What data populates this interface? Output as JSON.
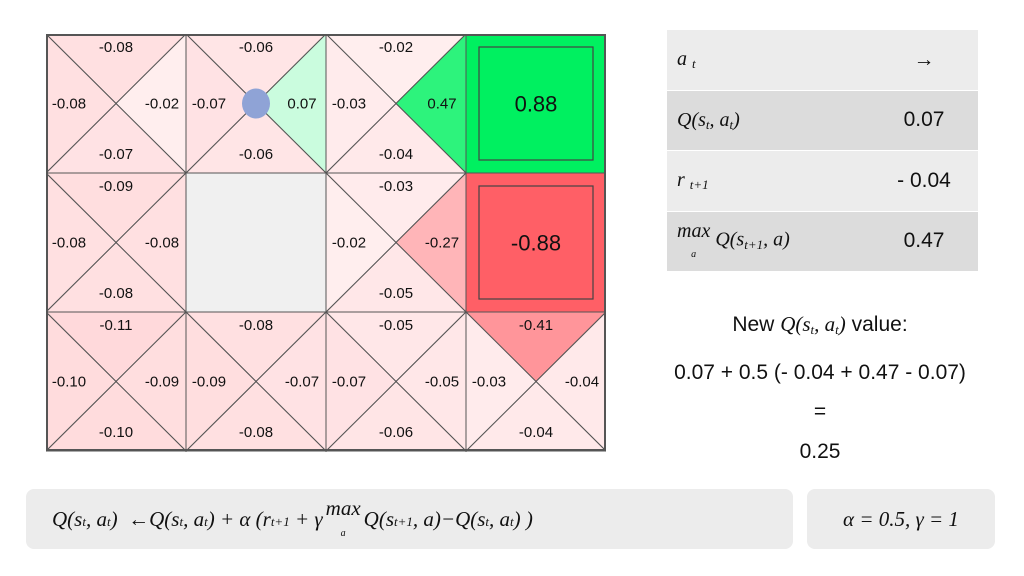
{
  "grid": {
    "cells": [
      {
        "type": "q",
        "values": {
          "up": "-0.08",
          "left": "-0.08",
          "right": "-0.02",
          "down": "-0.07"
        }
      },
      {
        "type": "q",
        "values": {
          "up": "-0.06",
          "left": "-0.07",
          "right": "0.07",
          "down": "-0.06"
        }
      },
      {
        "type": "q",
        "values": {
          "up": "-0.02",
          "left": "-0.03",
          "right": "0.47",
          "down": "-0.04"
        }
      },
      {
        "type": "terminal",
        "value": "0.88"
      },
      {
        "type": "q",
        "values": {
          "up": "-0.09",
          "left": "-0.08",
          "right": "-0.08",
          "down": "-0.08"
        }
      },
      {
        "type": "wall"
      },
      {
        "type": "q",
        "values": {
          "up": "-0.03",
          "left": "-0.02",
          "right": "-0.27",
          "down": "-0.05"
        }
      },
      {
        "type": "terminal",
        "value": "-0.88"
      },
      {
        "type": "q",
        "values": {
          "up": "-0.11",
          "left": "-0.10",
          "right": "-0.09",
          "down": "-0.10"
        }
      },
      {
        "type": "q",
        "values": {
          "up": "-0.08",
          "left": "-0.09",
          "right": "-0.07",
          "down": "-0.08"
        }
      },
      {
        "type": "q",
        "values": {
          "up": "-0.05",
          "left": "-0.07",
          "right": "-0.05",
          "down": "-0.06"
        }
      },
      {
        "type": "q",
        "values": {
          "up": "-0.41",
          "left": "-0.03",
          "right": "-0.04",
          "down": "-0.04"
        }
      }
    ],
    "agent_cell": 1,
    "agent_color": "#8fa3d6",
    "positive_color": "#00f060",
    "negative_color": "#ff5f66",
    "wall_color": "#f0f0f0"
  },
  "table": {
    "action_label": "a",
    "action_sub": "t",
    "action_value": "→",
    "q_label": "Q(s",
    "q_s_sub": "t",
    "q_mid": ", a",
    "q_a_sub": "t",
    "q_end": ")",
    "q_value": "0.07",
    "r_label": "r",
    "r_sub": "t+1",
    "r_value": "- 0.04",
    "max_label": "max",
    "max_under": "a",
    "max_q": "Q(s",
    "max_s_sub": "t+1",
    "max_end": ", a)",
    "max_value": "0.47"
  },
  "calc": {
    "new_prefix": "New",
    "new_q": "Q(s",
    "new_s_sub": "t",
    "new_mid": ", a",
    "new_a_sub": "t",
    "new_end": ")",
    "new_suffix": "value:",
    "expression": "0.07 + 0.5 (- 0.04 + 0.47 - 0.07)",
    "equals": "=",
    "result": "0.25"
  },
  "formula": {
    "lhs": "Q(s",
    "lhs_s_sub": "t",
    "lhs_mid": ", a",
    "lhs_a_sub": "t",
    "lhs_end": ")",
    "arrow": "←",
    "q1": "Q(s",
    "q1_s_sub": "t",
    "q1_mid": ", a",
    "q1_a_sub": "t",
    "q1_end": ")",
    "plus_alpha": "+ α (",
    "r": "r",
    "r_sub": "t+1",
    "plus_gamma": "+ γ",
    "max": "max",
    "max_under": "a",
    "q2": "Q(s",
    "q2_s_sub": "t+1",
    "q2_end": ", a)",
    "minus": "−",
    "q3": "Q(s",
    "q3_s_sub": "t",
    "q3_mid": ", a",
    "q3_a_sub": "t",
    "q3_end": ") )"
  },
  "params": "α = 0.5,  γ = 1"
}
